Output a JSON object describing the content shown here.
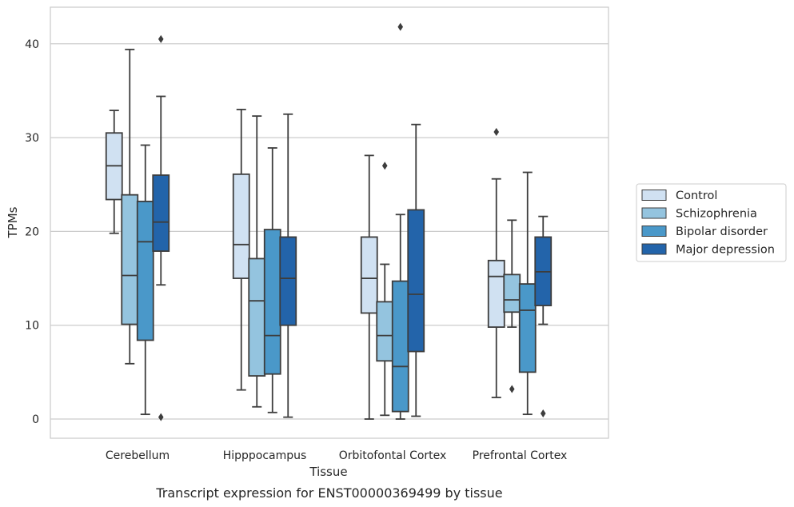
{
  "chart_data": {
    "type": "boxplot",
    "title": "",
    "caption": "Transcript expression for ENST00000369499 by tissue",
    "xlabel": "Tissue",
    "ylabel": "TPMs",
    "ylim": [
      -2,
      44
    ],
    "yticks": [
      0,
      10,
      20,
      30,
      40
    ],
    "grid": "horizontal",
    "legend_position": "right",
    "categories": [
      "Cerebellum",
      "Hipppocampus",
      "Orbitofontal Cortex",
      "Prefrontal Cortex"
    ],
    "series": [
      {
        "name": "Control",
        "color": "#d0e1f2",
        "boxes": [
          {
            "whislo": 19.8,
            "q1": 23.4,
            "med": 27.0,
            "q3": 30.5,
            "whishi": 32.9,
            "fliers": []
          },
          {
            "whislo": 3.1,
            "q1": 15.0,
            "med": 18.6,
            "q3": 26.1,
            "whishi": 33.0,
            "fliers": []
          },
          {
            "whislo": 0.0,
            "q1": 11.3,
            "med": 15.0,
            "q3": 19.4,
            "whishi": 28.1,
            "fliers": []
          },
          {
            "whislo": 2.3,
            "q1": 9.8,
            "med": 15.2,
            "q3": 16.9,
            "whishi": 25.6,
            "fliers": [
              30.6
            ]
          }
        ]
      },
      {
        "name": "Schizophrenia",
        "color": "#94c4df",
        "boxes": [
          {
            "whislo": 5.9,
            "q1": 10.1,
            "med": 15.3,
            "q3": 23.9,
            "whishi": 39.4,
            "fliers": []
          },
          {
            "whislo": 1.3,
            "q1": 4.6,
            "med": 12.6,
            "q3": 17.1,
            "whishi": 32.3,
            "fliers": []
          },
          {
            "whislo": 0.4,
            "q1": 6.2,
            "med": 8.9,
            "q3": 12.5,
            "whishi": 16.5,
            "fliers": [
              27.0
            ]
          },
          {
            "whislo": 9.8,
            "q1": 11.4,
            "med": 12.7,
            "q3": 15.4,
            "whishi": 21.2,
            "fliers": [
              3.2
            ]
          }
        ]
      },
      {
        "name": "Bipolar disorder",
        "color": "#4a98c9",
        "boxes": [
          {
            "whislo": 0.5,
            "q1": 8.4,
            "med": 18.9,
            "q3": 23.2,
            "whishi": 29.2,
            "fliers": []
          },
          {
            "whislo": 0.7,
            "q1": 4.8,
            "med": 8.9,
            "q3": 20.2,
            "whishi": 28.9,
            "fliers": []
          },
          {
            "whislo": 0.0,
            "q1": 0.8,
            "med": 5.6,
            "q3": 14.7,
            "whishi": 21.8,
            "fliers": [
              41.8
            ]
          },
          {
            "whislo": 0.5,
            "q1": 5.0,
            "med": 11.6,
            "q3": 14.4,
            "whishi": 26.3,
            "fliers": []
          }
        ]
      },
      {
        "name": "Major depression",
        "color": "#2364aa",
        "boxes": [
          {
            "whislo": 14.3,
            "q1": 17.9,
            "med": 21.0,
            "q3": 26.0,
            "whishi": 34.4,
            "fliers": [
              40.5,
              0.2
            ]
          },
          {
            "whislo": 0.2,
            "q1": 10.0,
            "med": 15.0,
            "q3": 19.4,
            "whishi": 32.5,
            "fliers": []
          },
          {
            "whislo": 0.3,
            "q1": 7.2,
            "med": 13.3,
            "q3": 22.3,
            "whishi": 31.4,
            "fliers": []
          },
          {
            "whislo": 10.1,
            "q1": 12.1,
            "med": 15.7,
            "q3": 19.4,
            "whishi": 21.6,
            "fliers": [
              0.6
            ]
          }
        ]
      }
    ]
  }
}
